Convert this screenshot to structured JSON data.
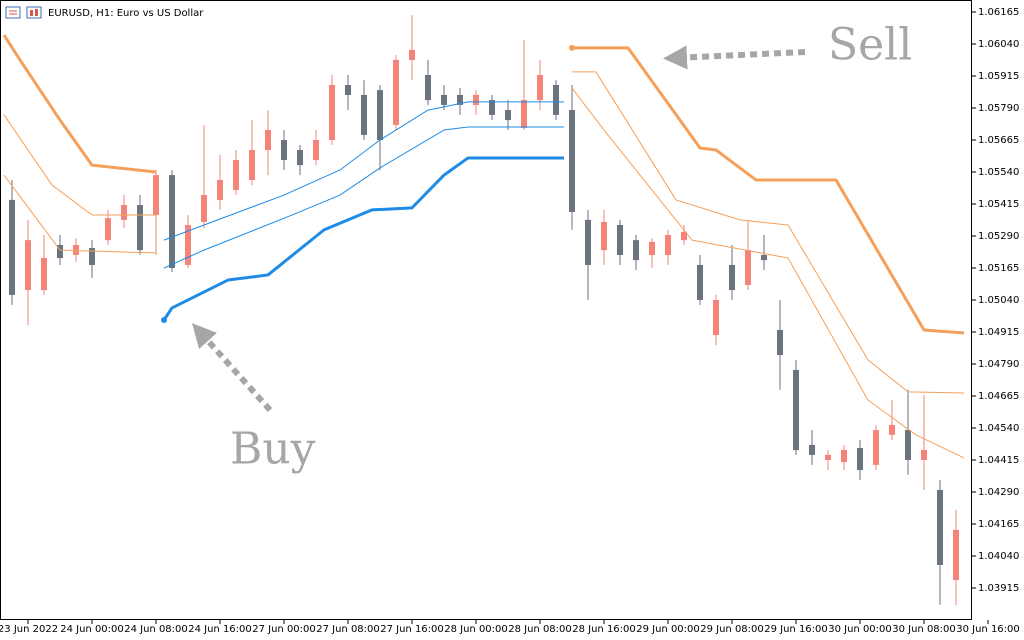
{
  "chart_data": {
    "type": "candlestick",
    "title": "EURUSD, H1:  Euro vs US Dollar",
    "x": [
      -2,
      0,
      2,
      4,
      6,
      8,
      10,
      12,
      14,
      16,
      18,
      20,
      22,
      24,
      26,
      28,
      30,
      32,
      34,
      36,
      38,
      40,
      42,
      44,
      46,
      48,
      50,
      52,
      54,
      56,
      58,
      60,
      62,
      64,
      66,
      68,
      70,
      72,
      74,
      76,
      78,
      80,
      82,
      84,
      86,
      88,
      90,
      92,
      94,
      96,
      98,
      100,
      102,
      104,
      106,
      108,
      110,
      112,
      114,
      116
    ],
    "open": [
      1.05431,
      1.05079,
      1.05079,
      1.05255,
      1.05216,
      1.05243,
      1.05274,
      1.05353,
      1.05411,
      1.05372,
      1.05528,
      1.05177,
      1.05345,
      1.05431,
      1.0547,
      1.05509,
      1.05626,
      1.05665,
      1.05626,
      1.05587,
      1.05665,
      1.0588,
      1.05841,
      1.0586,
      1.05724,
      1.05978,
      1.05919,
      1.05841,
      1.05841,
      1.05802,
      1.05821,
      1.05782,
      1.05712,
      1.05821,
      1.0588,
      1.05782,
      1.05353,
      1.05235,
      1.05333,
      1.05274,
      1.05216,
      1.05216,
      1.05274,
      1.05177,
      1.04903,
      1.05177,
      1.05099,
      1.05216,
      1.04923,
      1.04767,
      1.04474,
      1.04415,
      1.04407,
      1.04462,
      1.04396,
      1.04513,
      1.04532,
      1.04415,
      1.04298,
      1.03946
    ],
    "high": [
      1.05509,
      1.05353,
      1.05294,
      1.05294,
      1.05282,
      1.05274,
      1.05392,
      1.0545,
      1.0545,
      1.05548,
      1.05548,
      1.05372,
      1.05724,
      1.05607,
      1.05626,
      1.05743,
      1.05782,
      1.05704,
      1.05646,
      1.05704,
      1.05919,
      1.05919,
      1.05899,
      1.0588,
      1.05997,
      1.06153,
      1.05978,
      1.0588,
      1.05868,
      1.0586,
      1.05841,
      1.05821,
      1.06056,
      1.05978,
      1.05899,
      1.0588,
      1.05392,
      1.05392,
      1.05353,
      1.05294,
      1.05282,
      1.05314,
      1.05333,
      1.05216,
      1.0506,
      1.05255,
      1.05353,
      1.05294,
      1.0504,
      1.04806,
      1.04532,
      1.04454,
      1.04474,
      1.04493,
      1.04552,
      1.04649,
      1.04689,
      1.04669,
      1.04337,
      1.0422
    ],
    "low": [
      1.05021,
      1.04942,
      1.0506,
      1.05177,
      1.05189,
      1.05126,
      1.05255,
      1.05321,
      1.05216,
      1.05216,
      1.05149,
      1.05165,
      1.05321,
      1.05392,
      1.0545,
      1.05489,
      1.05528,
      1.05548,
      1.05528,
      1.05567,
      1.05646,
      1.05782,
      1.05665,
      1.05548,
      1.05704,
      1.05899,
      1.05802,
      1.05782,
      1.05763,
      1.05763,
      1.05743,
      1.05704,
      1.05704,
      1.05782,
      1.05743,
      1.05314,
      1.0504,
      1.05177,
      1.05177,
      1.05157,
      1.05165,
      1.05177,
      1.05255,
      1.05021,
      1.04864,
      1.0504,
      1.05079,
      1.05157,
      1.04689,
      1.04435,
      1.04396,
      1.04376,
      1.04376,
      1.04337,
      1.04376,
      1.04493,
      1.04357,
      1.04298,
      1.03849,
      1.03849
    ],
    "close": [
      1.0506,
      1.05274,
      1.05204,
      1.05204,
      1.05255,
      1.05177,
      1.0536,
      1.05411,
      1.05235,
      1.05528,
      1.05165,
      1.05333,
      1.0545,
      1.05509,
      1.05587,
      1.05626,
      1.05704,
      1.05587,
      1.05567,
      1.05665,
      1.0588,
      1.05841,
      1.05685,
      1.05665,
      1.05978,
      1.06017,
      1.05821,
      1.05802,
      1.05802,
      1.05841,
      1.05763,
      1.05743,
      1.05821,
      1.05919,
      1.05763,
      1.05384,
      1.05177,
      1.05345,
      1.05216,
      1.05196,
      1.05267,
      1.05294,
      1.05306,
      1.0504,
      1.0504,
      1.05079,
      1.05235,
      1.05196,
      1.04825,
      1.04454,
      1.04435,
      1.04435,
      1.04454,
      1.04376,
      1.04532,
      1.04552,
      1.04415,
      1.04454,
      1.04005,
      1.04142
    ],
    "up_color": "#f4837a",
    "down_color": "#6b7280",
    "lines": [
      {
        "color": "#f5a05a",
        "width": 3,
        "x": [
          -3,
          -1,
          4,
          8,
          16,
          42,
          68,
          75,
          84,
          86,
          91,
          101,
          112,
          117
        ],
        "values": [
          1.06075,
          1.05978,
          1.05743,
          1.05567,
          1.0554,
          null,
          1.06025,
          1.06025,
          1.05634,
          1.05626,
          1.05509,
          1.05509,
          1.04923,
          1.04911
        ]
      },
      {
        "color": "#f5a05a",
        "width": 1,
        "x": [
          -3,
          3,
          8,
          16,
          42,
          68,
          71,
          81,
          89,
          95,
          105,
          110,
          117
        ],
        "values": [
          1.05763,
          1.05489,
          1.05372,
          1.05372,
          null,
          1.05931,
          1.05931,
          1.05431,
          1.05353,
          1.05333,
          1.04806,
          1.04681,
          1.04677
        ]
      },
      {
        "color": "#f5a05a",
        "width": 1,
        "x": [
          -3,
          4,
          16,
          42,
          68,
          72,
          83,
          95,
          105,
          111,
          117
        ],
        "values": [
          1.05528,
          1.05235,
          1.05224,
          null,
          1.05868,
          1.05704,
          1.05274,
          1.05204,
          1.04649,
          1.04513,
          1.04423
        ]
      },
      {
        "color": "#1e8ce6",
        "width": 3,
        "x": [
          17,
          18,
          25,
          30,
          37,
          43,
          48,
          52,
          55,
          67
        ],
        "values": [
          1.04962,
          1.05009,
          1.05118,
          1.05138,
          1.05314,
          1.05392,
          1.054,
          1.05528,
          1.05595,
          1.05595
        ]
      },
      {
        "color": "#1e8ce6",
        "width": 1,
        "x": [
          17,
          22,
          32,
          39,
          44,
          50,
          55,
          67
        ],
        "values": [
          1.05274,
          1.05333,
          1.0545,
          1.05548,
          1.05665,
          1.05782,
          1.05814,
          1.05814
        ]
      },
      {
        "color": "#1e8ce6",
        "width": 1,
        "x": [
          17,
          22,
          33,
          39,
          44,
          52,
          55,
          67
        ],
        "values": [
          1.05165,
          1.05235,
          1.05372,
          1.0545,
          1.05556,
          1.05704,
          1.05716,
          1.05716
        ]
      }
    ],
    "xlim": [
      -3,
      118
    ],
    "ylim": [
      1.0379,
      1.06212
    ],
    "xticks": [
      {
        "value": 0,
        "label": "23 Jun 2022"
      },
      {
        "value": 8,
        "label": "24 Jun 00:00"
      },
      {
        "value": 16,
        "label": "24 Jun 08:00"
      },
      {
        "value": 24,
        "label": "24 Jun 16:00"
      },
      {
        "value": 32,
        "label": "27 Jun 00:00"
      },
      {
        "value": 40,
        "label": "27 Jun 08:00"
      },
      {
        "value": 48,
        "label": "27 Jun 16:00"
      },
      {
        "value": 56,
        "label": "28 Jun 00:00"
      },
      {
        "value": 64,
        "label": "28 Jun 08:00"
      },
      {
        "value": 72,
        "label": "28 Jun 16:00"
      },
      {
        "value": 80,
        "label": "29 Jun 00:00"
      },
      {
        "value": 88,
        "label": "29 Jun 08:00"
      },
      {
        "value": 96,
        "label": "29 Jun 16:00"
      },
      {
        "value": 104,
        "label": "30 Jun 00:00"
      },
      {
        "value": 112,
        "label": "30 Jun 08:00"
      },
      {
        "value": 120,
        "label": "30 Jun 16:00"
      }
    ],
    "yticks": [
      1.06165,
      {
        "value": 1.0604,
        "label": "1.06040"
      },
      1.05915,
      {
        "value": 1.0579,
        "label": "1.05790"
      },
      1.05665,
      {
        "value": 1.0554,
        "label": "1.05540"
      },
      1.05415,
      {
        "value": 1.0529,
        "label": "1.05290"
      },
      1.05165,
      {
        "value": 1.0504,
        "label": "1.05040"
      },
      1.04915,
      {
        "value": 1.0479,
        "label": "1.04790"
      },
      1.04665,
      {
        "value": 1.0454,
        "label": "1.04540"
      },
      1.04415,
      {
        "value": 1.0429,
        "label": "1.04290"
      },
      1.04165,
      {
        "value": 1.0404,
        "label": "1.04040"
      },
      1.03915
    ],
    "annotations": [
      "Sell",
      "Buy"
    ]
  }
}
